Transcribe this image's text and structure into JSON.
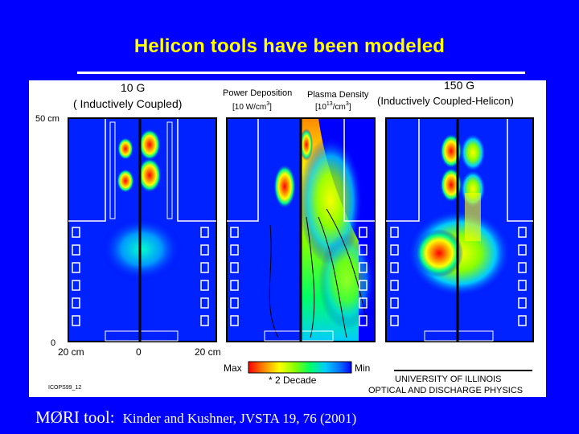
{
  "slide": {
    "title": "Helicon tools have been modeled",
    "citation_tool": "MØRI tool:",
    "citation_ref": "Kinder and Kushner, JVSTA 19, 76 (2001)"
  },
  "figure": {
    "left_header_field": "10 G",
    "left_header_mode": "( Inductively Coupled)",
    "middle_header_power": "Power Deposition",
    "middle_header_power_unit": "[10 W/cm",
    "middle_header_power_exp": "3",
    "middle_header_power_close": "]",
    "middle_header_density": "Plasma Density",
    "middle_header_density_unit": "[10",
    "middle_header_density_exp": "13",
    "middle_header_density_unit2": "/cm",
    "middle_header_density_exp2": "3",
    "middle_header_density_close": "]",
    "right_header_field": "150 G",
    "right_header_mode": "(Inductively Coupled-Helicon)",
    "y_axis_top": "50 cm",
    "y_axis_bottom": "0",
    "x_axis_left": "20 cm",
    "x_axis_center": "0",
    "x_axis_right": "20 cm",
    "scale_max": "Max",
    "scale_min": "Min",
    "scale_note": "* 2 Decade",
    "figure_code": "ICOPS99_12",
    "institution_line1": "UNIVERSITY OF ILLINOIS",
    "institution_line2": "OPTICAL AND DISCHARGE PHYSICS",
    "colors": {
      "background": "#0000ff",
      "title": "#ffff00",
      "scale": [
        "#ff0000",
        "#ff8800",
        "#ffff00",
        "#88ff00",
        "#00ff00",
        "#00ffaa",
        "#00ccff",
        "#0066ff",
        "#0000ff"
      ]
    }
  }
}
